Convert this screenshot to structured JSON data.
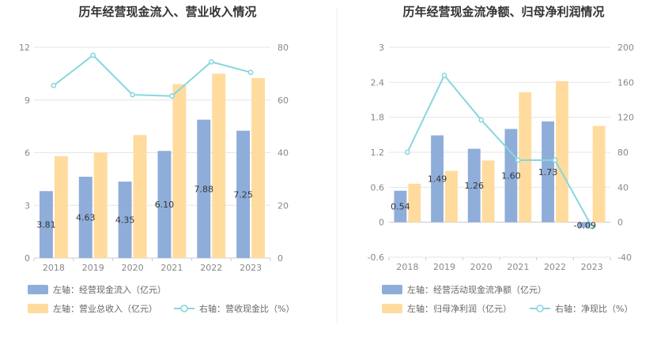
{
  "colors": {
    "bar_left": "#8fadd9",
    "bar_right": "#ffdb9e",
    "line": "#87d6de"
  },
  "chart_data": [
    {
      "type": "bar",
      "title": "历年经营现金流入、营业收入情况",
      "categories": [
        "2018",
        "2019",
        "2020",
        "2021",
        "2022",
        "2023"
      ],
      "y_left": {
        "min": 0,
        "max": 12,
        "ticks": [
          "0",
          "3",
          "6",
          "9",
          "12"
        ]
      },
      "y_right": {
        "min": 0,
        "max": 80,
        "ticks": [
          "0",
          "20",
          "40",
          "60",
          "80"
        ]
      },
      "series": [
        {
          "name": "左轴：经营现金流入（亿元）",
          "axis": "left",
          "kind": "bar",
          "values": [
            3.81,
            4.63,
            4.35,
            6.1,
            7.88,
            7.25
          ],
          "labels": [
            "3.81",
            "4.63",
            "4.35",
            "6.10",
            "7.88",
            "7.25"
          ]
        },
        {
          "name": "左轴：营业总收入（亿元）",
          "axis": "left",
          "kind": "bar",
          "values": [
            5.8,
            6.0,
            7.0,
            9.9,
            10.5,
            10.25
          ]
        },
        {
          "name": "右轴：营收现金比（%）",
          "axis": "right",
          "kind": "line",
          "values": [
            65.5,
            77,
            62,
            61.5,
            74.5,
            70.5
          ]
        }
      ],
      "legend": "bottom"
    },
    {
      "type": "bar",
      "title": "历年经营现金流净额、归母净利润情况",
      "categories": [
        "2018",
        "2019",
        "2020",
        "2021",
        "2022",
        "2023"
      ],
      "y_left": {
        "min": -0.6,
        "max": 3,
        "ticks": [
          "-0.6",
          "0",
          "0.6",
          "1.2",
          "1.8",
          "2.4",
          "3"
        ]
      },
      "y_right": {
        "min": -40,
        "max": 200,
        "ticks": [
          "-40",
          "0",
          "40",
          "80",
          "120",
          "160",
          "200"
        ]
      },
      "series": [
        {
          "name": "左轴：经营活动现金流净额（亿元）",
          "axis": "left",
          "kind": "bar",
          "values": [
            0.54,
            1.49,
            1.26,
            1.6,
            1.73,
            -0.09
          ],
          "labels": [
            "0.54",
            "1.49",
            "1.26",
            "1.60",
            "1.73",
            "-0.09"
          ]
        },
        {
          "name": "左轴：归母净利润（亿元）",
          "axis": "left",
          "kind": "bar",
          "values": [
            0.66,
            0.88,
            1.06,
            2.23,
            2.42,
            1.65
          ]
        },
        {
          "name": "右轴：净现比（%）",
          "axis": "right",
          "kind": "line",
          "values": [
            80,
            168,
            117,
            71,
            71,
            -5
          ]
        }
      ],
      "legend": "bottom"
    }
  ]
}
